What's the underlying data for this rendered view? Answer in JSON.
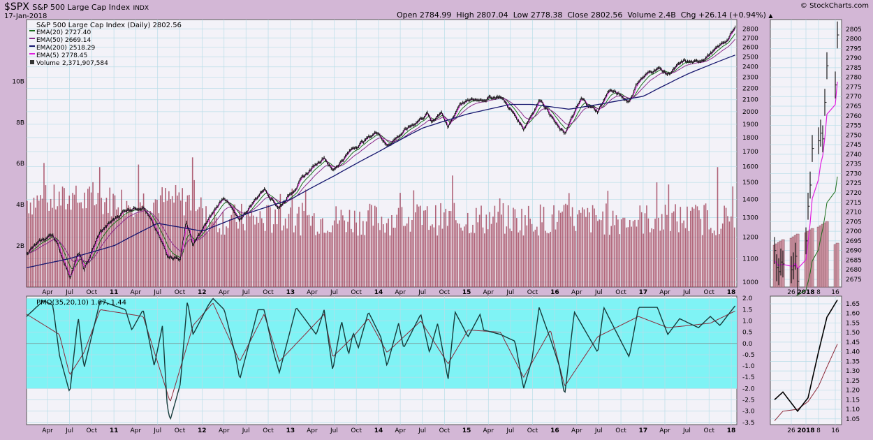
{
  "header": {
    "symbol": "$SPX",
    "name": "S&P 500 Large Cap Index",
    "exchange": "INDX",
    "date": "17-Jan-2018",
    "brand": "© StockCharts.com",
    "quote": {
      "open_label": "Open",
      "open": "2784.99",
      "high_label": "High",
      "high": "2807.04",
      "low_label": "Low",
      "low": "2778.38",
      "close_label": "Close",
      "close": "2802.56",
      "volume_label": "Volume",
      "volume": "2.4B",
      "chg_label": "Chg",
      "chg": "+26.14 (+0.94%)"
    }
  },
  "colors": {
    "background": "#d3b7d6",
    "plot_bg": "#f3f2f8",
    "grid": "#b9dde8",
    "price": "#1a1a1a",
    "ema20": "#1a6e1a",
    "ema50": "#8b2a8b",
    "ema200": "#16166e",
    "ema5": "#e01ee0",
    "volume": "#99334d",
    "pmo_band": "#7ff3f5",
    "pmo": "#153b3b",
    "pmo_signal": "#8b2a3a"
  },
  "chart_data": [
    {
      "type": "line",
      "title": "S&P 500 Large Cap Index (Daily) 2802.56",
      "legend": [
        {
          "name": "EMA(20)",
          "value": "2727.40"
        },
        {
          "name": "EMA(50)",
          "value": "2669.14"
        },
        {
          "name": "EMA(200)",
          "value": "2518.29"
        },
        {
          "name": "EMA(5)",
          "value": "2778.45"
        },
        {
          "name": "Volume",
          "value": "2,371,907,584"
        }
      ],
      "x_tick_labels": [
        "Apr",
        "Jul",
        "Oct",
        "11",
        "Apr",
        "Jul",
        "Oct",
        "12",
        "Apr",
        "Jul",
        "Oct",
        "13",
        "Apr",
        "Jul",
        "Oct",
        "14",
        "Apr",
        "Jul",
        "Oct",
        "15",
        "Apr",
        "Jul",
        "Oct",
        "16",
        "Apr",
        "Jul",
        "Oct",
        "17",
        "Apr",
        "Jul",
        "Oct",
        "18"
      ],
      "y_ticks": [
        1000,
        1100,
        1200,
        1300,
        1400,
        1500,
        1600,
        1700,
        1800,
        1900,
        2000,
        2100,
        2200,
        2300,
        2400,
        2500,
        2600,
        2700,
        2800
      ],
      "volume_ticks": [
        "2B",
        "4B",
        "6B",
        "8B",
        "10B"
      ],
      "ylim": [
        1000,
        2800
      ],
      "y_scale": "log",
      "legend_position": "top-left",
      "series": [
        {
          "name": "S&P 500 Large Cap Index (Daily)",
          "x": [
            "2010-01-04",
            "2010-04-23",
            "2010-07-02",
            "2010-08-09",
            "2010-08-31",
            "2010-11-05",
            "2011-02-18",
            "2011-05-02",
            "2011-08-08",
            "2011-10-03",
            "2011-10-27",
            "2011-11-25",
            "2012-04-02",
            "2012-06-01",
            "2012-09-14",
            "2012-11-15",
            "2013-03-15",
            "2013-05-21",
            "2013-06-24",
            "2013-09-18",
            "2013-12-31",
            "2014-02-03",
            "2014-07-24",
            "2014-08-07",
            "2014-09-19",
            "2014-10-15",
            "2014-12-05",
            "2015-02-27",
            "2015-05-21",
            "2015-08-25",
            "2015-11-03",
            "2016-01-20",
            "2016-02-11",
            "2016-04-20",
            "2016-06-27",
            "2016-08-15",
            "2016-11-04",
            "2016-12-13",
            "2017-03-01",
            "2017-04-13",
            "2017-06-19",
            "2017-08-10",
            "2017-10-31",
            "2017-12-18",
            "2018-01-17"
          ],
          "values": [
            1130,
            1217,
            1022,
            1127,
            1047,
            1225,
            1343,
            1363,
            1120,
            1099,
            1284,
            1158,
            1419,
            1278,
            1465,
            1353,
            1563,
            1669,
            1573,
            1725,
            1848,
            1741,
            1988,
            1909,
            2011,
            1862,
            2075,
            2105,
            2131,
            1867,
            2109,
            1859,
            1829,
            2102,
            2000,
            2190,
            2085,
            2271,
            2395,
            2328,
            2453,
            2438,
            2575,
            2690,
            2802
          ]
        },
        {
          "name": "EMA(200)",
          "x": [
            "2010-01-04",
            "2010-07-01",
            "2011-01-03",
            "2011-07-01",
            "2012-01-03",
            "2012-07-02",
            "2013-01-02",
            "2013-07-01",
            "2014-01-02",
            "2014-07-01",
            "2015-01-02",
            "2015-07-01",
            "2015-10-01",
            "2016-03-01",
            "2016-07-01",
            "2017-01-03",
            "2017-07-03",
            "2018-01-17"
          ],
          "values": [
            1060,
            1100,
            1160,
            1270,
            1230,
            1320,
            1400,
            1540,
            1700,
            1870,
            1980,
            2060,
            2060,
            2020,
            2060,
            2130,
            2330,
            2518
          ]
        }
      ]
    },
    {
      "type": "line",
      "title": "PMO(35,20,10) 1.67, 1.44",
      "y_ticks": [
        -3.5,
        -3.0,
        -2.5,
        -2.0,
        -1.5,
        -1.0,
        -0.5,
        0.0,
        0.5,
        1.0,
        1.5,
        2.0
      ],
      "ylim": [
        -3.6,
        2.1
      ],
      "band": [
        -2.0,
        2.0
      ],
      "series": [
        {
          "name": "PMO(35,20,10)",
          "x": [
            "2010-01-04",
            "2010-03-15",
            "2010-04-23",
            "2010-05-20",
            "2010-07-02",
            "2010-08-06",
            "2010-08-30",
            "2010-11-05",
            "2011-02-18",
            "2011-03-16",
            "2011-05-02",
            "2011-06-17",
            "2011-07-21",
            "2011-08-10",
            "2011-08-22",
            "2011-10-03",
            "2011-11-01",
            "2011-11-25",
            "2012-01-27",
            "2012-02-15",
            "2012-04-02",
            "2012-05-18",
            "2012-06-05",
            "2012-08-20",
            "2012-09-14",
            "2012-10-26",
            "2012-11-16",
            "2013-01-25",
            "2013-04-18",
            "2013-05-21",
            "2013-06-25",
            "2013-08-01",
            "2013-08-30",
            "2013-09-18",
            "2013-10-09",
            "2013-11-20",
            "2014-01-10",
            "2014-02-05",
            "2014-03-25",
            "2014-04-15",
            "2014-06-25",
            "2014-07-31",
            "2014-09-03",
            "2014-10-16",
            "2014-11-14",
            "2015-01-07",
            "2015-02-26",
            "2015-03-12",
            "2015-05-21",
            "2015-06-30",
            "2015-07-20",
            "2015-08-25",
            "2015-09-29",
            "2015-10-28",
            "2015-12-14",
            "2016-01-20",
            "2016-02-11",
            "2016-03-22",
            "2016-06-27",
            "2016-07-22",
            "2016-09-12",
            "2016-11-04",
            "2016-12-13",
            "2017-03-01",
            "2017-04-13",
            "2017-06-01",
            "2017-08-18",
            "2017-10-06",
            "2017-11-15",
            "2018-01-17"
          ],
          "values": [
            1.2,
            1.9,
            1.7,
            -0.5,
            -2.2,
            1.2,
            -1.1,
            1.9,
            1.5,
            0.6,
            1.5,
            -1.0,
            0.8,
            -2.8,
            -3.4,
            -1.8,
            1.9,
            0.4,
            1.7,
            2.0,
            1.5,
            -0.5,
            -1.6,
            1.5,
            1.5,
            -0.5,
            -1.3,
            1.6,
            0.4,
            1.5,
            -1.2,
            1.0,
            -0.5,
            0.5,
            -0.2,
            1.4,
            0.3,
            -1.0,
            0.9,
            -0.2,
            1.3,
            -0.4,
            0.9,
            -1.6,
            1.4,
            0.3,
            1.3,
            0.6,
            0.4,
            0.2,
            0.1,
            -2.0,
            -0.7,
            1.6,
            0.2,
            -1.0,
            -2.3,
            1.4,
            -0.4,
            1.6,
            0.5,
            -0.6,
            1.6,
            1.6,
            0.4,
            1.1,
            0.7,
            1.2,
            0.8,
            1.67
          ]
        },
        {
          "name": "Signal",
          "x": [
            "2010-01-04",
            "2010-05-20",
            "2010-07-02",
            "2010-08-30",
            "2010-11-05",
            "2011-05-02",
            "2011-08-22",
            "2011-11-25",
            "2012-02-15",
            "2012-06-05",
            "2012-09-14",
            "2012-11-16",
            "2013-05-21",
            "2013-06-25",
            "2013-09-18",
            "2013-11-20",
            "2014-02-05",
            "2014-06-25",
            "2014-10-16",
            "2015-01-07",
            "2015-05-21",
            "2015-08-25",
            "2015-12-14",
            "2016-02-11",
            "2016-06-27",
            "2016-12-13",
            "2017-04-13",
            "2017-10-06",
            "2018-01-17"
          ],
          "values": [
            1.3,
            0.4,
            -1.4,
            -0.4,
            1.5,
            1.2,
            -2.6,
            0.8,
            1.8,
            -0.8,
            1.3,
            -0.8,
            1.3,
            -0.6,
            0.3,
            1.1,
            -0.4,
            1.0,
            -0.9,
            0.6,
            0.5,
            -1.5,
            0.6,
            -1.9,
            0.3,
            1.2,
            0.7,
            0.9,
            1.44
          ]
        }
      ]
    },
    {
      "type": "line",
      "title": "",
      "x_tick_labels": [
        "26",
        "2018",
        "8",
        "16"
      ],
      "y_ticks": [
        2675,
        2680,
        2685,
        2690,
        2695,
        2700,
        2705,
        2710,
        2715,
        2720,
        2725,
        2730,
        2735,
        2740,
        2745,
        2750,
        2755,
        2760,
        2765,
        2770,
        2775,
        2780,
        2785,
        2790,
        2795,
        2800,
        2805
      ],
      "ylim": [
        2671,
        2810
      ],
      "series": [
        {
          "name": "Close",
          "x": [
            "2017-12-18",
            "2017-12-19",
            "2017-12-20",
            "2017-12-21",
            "2017-12-22",
            "2017-12-26",
            "2017-12-27",
            "2017-12-28",
            "2017-12-29",
            "2018-01-02",
            "2018-01-03",
            "2018-01-04",
            "2018-01-05",
            "2018-01-08",
            "2018-01-09",
            "2018-01-10",
            "2018-01-11",
            "2018-01-12",
            "2018-01-16",
            "2018-01-17"
          ],
          "values": [
            2690,
            2681,
            2679,
            2684,
            2683,
            2680,
            2682,
            2687,
            2674,
            2695,
            2713,
            2724,
            2743,
            2747,
            2751,
            2748,
            2767,
            2786,
            2776,
            2802
          ]
        }
      ]
    },
    {
      "type": "line",
      "title": "",
      "x_tick_labels": [
        "26",
        "2018",
        "8",
        "16"
      ],
      "y_ticks": [
        1.05,
        1.1,
        1.15,
        1.2,
        1.25,
        1.3,
        1.35,
        1.4,
        1.45,
        1.5,
        1.55,
        1.6,
        1.65
      ],
      "ylim": [
        1.02,
        1.69
      ],
      "series": [
        {
          "name": "PMO",
          "x": [
            "2017-12-18",
            "2017-12-22",
            "2017-12-29",
            "2018-01-03",
            "2018-01-08",
            "2018-01-12",
            "2018-01-17"
          ],
          "values": [
            1.15,
            1.19,
            1.09,
            1.16,
            1.4,
            1.58,
            1.67
          ]
        },
        {
          "name": "Signal",
          "x": [
            "2017-12-18",
            "2017-12-22",
            "2017-12-29",
            "2018-01-03",
            "2018-01-08",
            "2018-01-12",
            "2018-01-17"
          ],
          "values": [
            1.04,
            1.09,
            1.1,
            1.14,
            1.22,
            1.32,
            1.44
          ]
        }
      ]
    }
  ]
}
